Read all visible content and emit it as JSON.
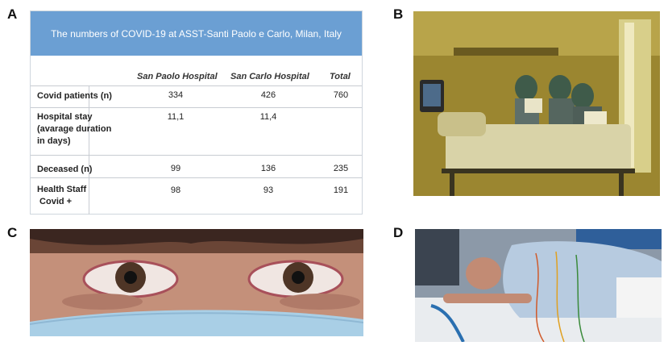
{
  "panels": {
    "a": "A",
    "b": "B",
    "c": "C",
    "d": "D"
  },
  "table": {
    "title": "The numbers of COVID-19 at ASST-Santi Paolo e Carlo, Milan, Italy",
    "headers": [
      "San Paolo Hospital",
      "San Carlo Hospital",
      "Total"
    ],
    "rows": [
      {
        "label": "Covid patients (n)",
        "san_paolo": "334",
        "san_carlo": "426",
        "total": "760"
      },
      {
        "label_lines": [
          "Hospital stay",
          "(avarage duration",
          "in days)"
        ],
        "san_paolo": "11,1",
        "san_carlo": "11,4",
        "total": ""
      },
      {
        "label": "Deceased (n)",
        "san_paolo": "99",
        "san_carlo": "136",
        "total": "235"
      },
      {
        "label_lines": [
          "Health Staff",
          " Covid +"
        ],
        "san_paolo": "98",
        "san_carlo": "93",
        "total": "191"
      }
    ]
  },
  "colors": {
    "table_header_bg": "#6b9fd3",
    "panel_b_tint": "#a38b2b",
    "mask_blue": "#a9cfe6",
    "gown_blue": "#b7cbe0"
  }
}
